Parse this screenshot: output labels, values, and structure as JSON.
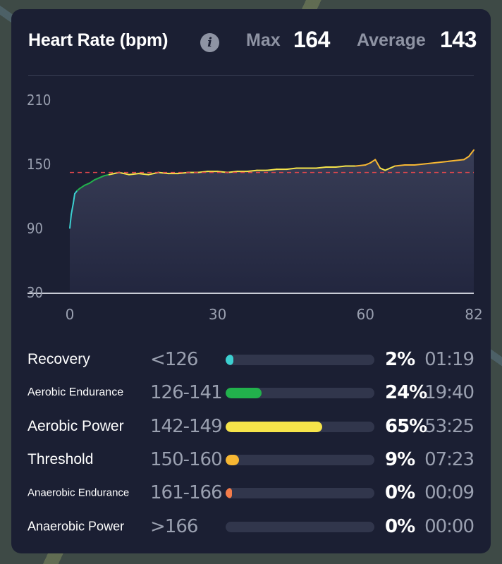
{
  "header": {
    "title": "Heart Rate (bpm)",
    "info_icon": "info-icon",
    "max_label": "Max",
    "max_value": "164",
    "avg_label": "Average",
    "avg_value": "143"
  },
  "chart_data": {
    "type": "line",
    "ylim": [
      30,
      210
    ],
    "yticks": [
      "210",
      "150",
      "90",
      "30"
    ],
    "xlim": [
      0,
      82
    ],
    "xticks": [
      "0",
      "30",
      "60",
      "82"
    ],
    "average_line": 143,
    "colors": {
      "recovery": "#3ccfd0",
      "aerobic_endurance": "#22b14c",
      "aerobic_power": "#f6e44a",
      "threshold": "#f7b733",
      "average": "#e5484d"
    },
    "series": [
      {
        "x": [
          0,
          0.3,
          0.7,
          1,
          1.5,
          2,
          3,
          4,
          5,
          6,
          7,
          8,
          9,
          10,
          12,
          14,
          16,
          18,
          20,
          22,
          24,
          26,
          28,
          30,
          32,
          34,
          36,
          38,
          40,
          42,
          44,
          46,
          48,
          50,
          52,
          54,
          56,
          58,
          60,
          61,
          62,
          63,
          64,
          66,
          68,
          70,
          72,
          74,
          76,
          78,
          80,
          81,
          82
        ],
        "values": [
          91,
          104,
          114,
          123,
          126,
          128,
          131,
          133,
          136,
          138,
          140,
          141,
          142,
          143,
          141,
          142,
          141,
          143,
          142,
          142,
          143,
          143,
          144,
          144,
          143,
          144,
          144,
          145,
          145,
          146,
          146,
          147,
          147,
          147,
          148,
          148,
          149,
          149,
          150,
          152,
          155,
          147,
          145,
          149,
          150,
          150,
          151,
          152,
          153,
          154,
          155,
          158,
          164
        ]
      }
    ]
  },
  "zones": [
    {
      "name": "Recovery",
      "range": "<126",
      "fraction": 0.02,
      "pct": "2%",
      "time": "01:19",
      "color": "#3ccfd0",
      "font_size": "21px"
    },
    {
      "name": "Aerobic Endurance",
      "range": "126-141",
      "fraction": 0.24,
      "pct": "24%",
      "time": "19:40",
      "color": "#22b14c",
      "font_size": "16px"
    },
    {
      "name": "Aerobic Power",
      "range": "142-149",
      "fraction": 0.65,
      "pct": "65%",
      "time": "53:25",
      "color": "#f6e44a",
      "font_size": "21px"
    },
    {
      "name": "Threshold",
      "range": "150-160",
      "fraction": 0.09,
      "pct": "9%",
      "time": "07:23",
      "color": "#f7b733",
      "font_size": "21px"
    },
    {
      "name": "Anaerobic Endurance",
      "range": "161-166",
      "fraction": 0.0,
      "pct": "0%",
      "time": "00:09",
      "color": "#f47c4a",
      "font_size": "15px"
    },
    {
      "name": "Anaerobic Power",
      "range": ">166",
      "fraction": 0.0,
      "pct": "0%",
      "time": "00:00",
      "color": "#e5484d",
      "font_size": "18px"
    }
  ]
}
